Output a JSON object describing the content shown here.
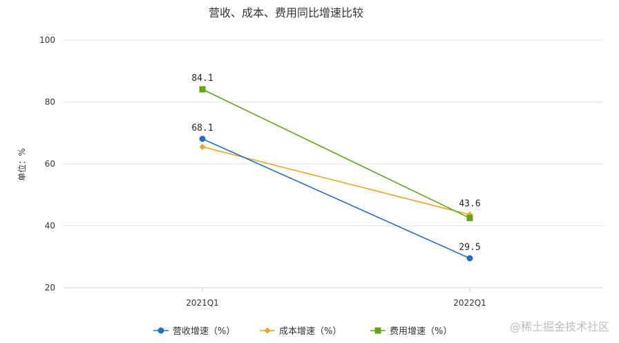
{
  "chart_data": {
    "type": "line",
    "title": "营收、成本、费用同比增速比较",
    "ylabel": "单位：%",
    "xlabel": "",
    "categories": [
      "2021Q1",
      "2022Q1"
    ],
    "ylim": [
      20,
      100
    ],
    "yticks": [
      20,
      40,
      60,
      80,
      100
    ],
    "grid": true,
    "legend_position": "bottom",
    "series": [
      {
        "name": "营收增速（%）",
        "values": [
          68.1,
          29.5
        ],
        "color": "#1f6fc5",
        "marker": "circle",
        "labels": [
          "68.1",
          "29.5"
        ]
      },
      {
        "name": "成本增速（%）",
        "values": [
          65.5,
          43.6
        ],
        "color": "#f2a21c",
        "marker": "diamond",
        "labels": [
          "",
          "43.6"
        ]
      },
      {
        "name": "费用增速（%）",
        "values": [
          84.1,
          42.5
        ],
        "color": "#5ea713",
        "marker": "square",
        "labels": [
          "84.1",
          ""
        ]
      }
    ]
  },
  "watermark": "@稀土掘金技术社区"
}
